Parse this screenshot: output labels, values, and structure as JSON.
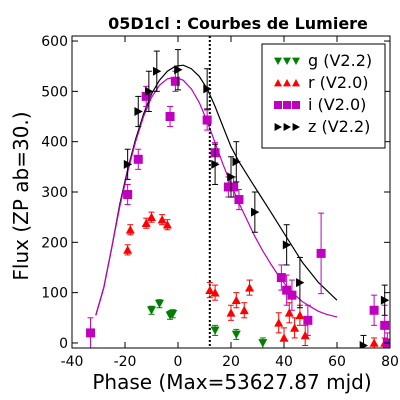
{
  "chart_data": {
    "type": "scatter",
    "title": "05D1cl : Courbes de Lumiere",
    "xlabel": "Phase (Max=53627.87 mjd)",
    "ylabel": "Flux (ZP ab=30.)",
    "xlim": [
      -40,
      80
    ],
    "ylim": [
      -10,
      610
    ],
    "xticks": [
      -40,
      -20,
      0,
      20,
      40,
      60,
      80
    ],
    "yticks": [
      0,
      100,
      200,
      300,
      400,
      500,
      600
    ],
    "legend_position": "top-right",
    "max_phase_line": 12,
    "series": [
      {
        "name": "g (V2.2)",
        "color": "#008000",
        "marker": "triangle-down",
        "points": [
          {
            "x": -10,
            "y": 65,
            "err": 8
          },
          {
            "x": -7,
            "y": 78,
            "err": 8
          },
          {
            "x": -3,
            "y": 55,
            "err": 8
          },
          {
            "x": -2,
            "y": 58,
            "err": 8
          },
          {
            "x": 14,
            "y": 25,
            "err": 10
          },
          {
            "x": 22,
            "y": 17,
            "err": 10
          },
          {
            "x": 32,
            "y": 0,
            "err": 10
          }
        ]
      },
      {
        "name": "r (V2.0)",
        "color": "#ff0000",
        "marker": "triangle-up",
        "points": [
          {
            "x": -19,
            "y": 185,
            "err": 10
          },
          {
            "x": -18,
            "y": 225,
            "err": 10
          },
          {
            "x": -12,
            "y": 238,
            "err": 10
          },
          {
            "x": -10,
            "y": 250,
            "err": 10
          },
          {
            "x": -6,
            "y": 245,
            "err": 10
          },
          {
            "x": -4,
            "y": 235,
            "err": 10
          },
          {
            "x": 12,
            "y": 105,
            "err": 15
          },
          {
            "x": 14,
            "y": 100,
            "err": 15
          },
          {
            "x": 20,
            "y": 60,
            "err": 15
          },
          {
            "x": 22,
            "y": 85,
            "err": 15
          },
          {
            "x": 25,
            "y": 65,
            "err": 15
          },
          {
            "x": 27,
            "y": 110,
            "err": 15
          },
          {
            "x": 38,
            "y": 40,
            "err": 20
          },
          {
            "x": 40,
            "y": 10,
            "err": 20
          },
          {
            "x": 42,
            "y": 60,
            "err": 20
          },
          {
            "x": 44,
            "y": 30,
            "err": 20
          },
          {
            "x": 46,
            "y": 55,
            "err": 20
          },
          {
            "x": 48,
            "y": 15,
            "err": 20
          },
          {
            "x": 74,
            "y": 0,
            "err": 10
          },
          {
            "x": 78,
            "y": 0,
            "err": 10
          }
        ]
      },
      {
        "name": "i (V2.0)",
        "color": "#bf00bf",
        "marker": "square",
        "points": [
          {
            "x": -33,
            "y": 20,
            "err": 30
          },
          {
            "x": -19,
            "y": 295,
            "err": 20
          },
          {
            "x": -15,
            "y": 365,
            "err": 20
          },
          {
            "x": -12,
            "y": 490,
            "err": 20
          },
          {
            "x": -3,
            "y": 450,
            "err": 20
          },
          {
            "x": -1,
            "y": 520,
            "err": 20
          },
          {
            "x": 11,
            "y": 443,
            "err": 20
          },
          {
            "x": 14,
            "y": 378,
            "err": 20
          },
          {
            "x": 19,
            "y": 310,
            "err": 20
          },
          {
            "x": 21,
            "y": 310,
            "err": 20
          },
          {
            "x": 23,
            "y": 285,
            "err": 20
          },
          {
            "x": 39,
            "y": 130,
            "err": 25
          },
          {
            "x": 41,
            "y": 105,
            "err": 30
          },
          {
            "x": 43,
            "y": 95,
            "err": 30
          },
          {
            "x": 49,
            "y": 45,
            "err": 30
          },
          {
            "x": 54,
            "y": 178,
            "err": 80
          },
          {
            "x": 74,
            "y": 65,
            "err": 30
          },
          {
            "x": 78,
            "y": 35,
            "err": 40
          },
          {
            "x": 79,
            "y": 0,
            "err": 20
          }
        ]
      },
      {
        "name": "z (V2.2)",
        "color": "#000000",
        "marker": "triangle-right",
        "points": [
          {
            "x": -19,
            "y": 355,
            "err": 30
          },
          {
            "x": -15,
            "y": 460,
            "err": 30
          },
          {
            "x": -11,
            "y": 500,
            "err": 40
          },
          {
            "x": -8,
            "y": 540,
            "err": 40
          },
          {
            "x": 0,
            "y": 543,
            "err": 40
          },
          {
            "x": 11,
            "y": 505,
            "err": 40
          },
          {
            "x": 14,
            "y": 355,
            "err": 40
          },
          {
            "x": 20,
            "y": 330,
            "err": 40
          },
          {
            "x": 22,
            "y": 360,
            "err": 40
          },
          {
            "x": 29,
            "y": 260,
            "err": 40
          },
          {
            "x": 41,
            "y": 195,
            "err": 40
          },
          {
            "x": 46,
            "y": 120,
            "err": 50
          },
          {
            "x": 70,
            "y": -5,
            "err": 20
          },
          {
            "x": 78,
            "y": 85,
            "err": 30
          }
        ]
      }
    ],
    "curves": [
      {
        "color": "#000000",
        "x": [
          -31,
          -28,
          -25,
          -22,
          -19,
          -16,
          -13,
          -10,
          -7,
          -4,
          -1,
          2,
          5,
          8,
          11,
          14,
          17,
          20,
          23,
          26,
          29,
          32,
          35,
          38,
          41,
          44,
          47,
          50,
          53,
          56,
          59,
          60
        ],
        "y": [
          55,
          110,
          190,
          275,
          345,
          405,
          455,
          495,
          522,
          540,
          550,
          552,
          545,
          530,
          505,
          470,
          430,
          390,
          360,
          335,
          310,
          285,
          260,
          235,
          210,
          185,
          160,
          140,
          120,
          105,
          90,
          85
        ]
      },
      {
        "color": "#bf00bf",
        "x": [
          -31,
          -28,
          -25,
          -22,
          -19,
          -16,
          -13,
          -10,
          -7,
          -4,
          -1,
          2,
          5,
          8,
          11,
          14,
          17,
          20,
          23,
          26,
          29,
          32,
          35,
          38,
          41,
          44,
          47,
          50,
          53,
          56,
          59,
          60
        ],
        "y": [
          55,
          110,
          190,
          270,
          340,
          400,
          450,
          488,
          512,
          525,
          528,
          522,
          505,
          478,
          440,
          398,
          355,
          315,
          278,
          245,
          212,
          183,
          157,
          133,
          113,
          96,
          82,
          72,
          63,
          57,
          53,
          52
        ]
      }
    ]
  }
}
